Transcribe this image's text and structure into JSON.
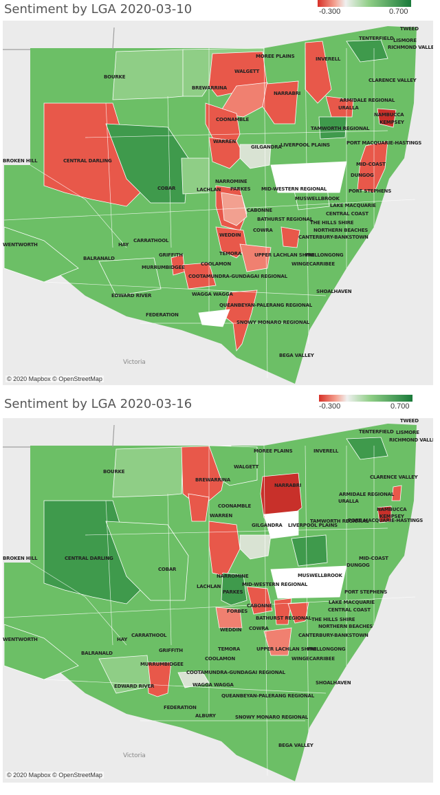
{
  "maps": [
    {
      "title": "Sentiment by LGA 2020-03-10",
      "legend": {
        "min": "-0.300",
        "max": "0.700"
      },
      "attribution": "© 2020 Mapbox © OpenStreetMap",
      "basemap_labels": [
        "Victoria"
      ],
      "lga_labels": [
        {
          "t": "TWEED"
        },
        {
          "t": "LISMORE"
        },
        {
          "t": "TENTERFIELD"
        },
        {
          "t": "RICHMOND VALLEY"
        },
        {
          "t": "MOREE PLAINS"
        },
        {
          "t": "INVERELL"
        },
        {
          "t": "BOURKE"
        },
        {
          "t": "WALGETT"
        },
        {
          "t": "BREWARRINA"
        },
        {
          "t": "CLARENCE VALLEY"
        },
        {
          "t": "NARRABRI"
        },
        {
          "t": "ARMIDALE REGIONAL"
        },
        {
          "t": "URALLA"
        },
        {
          "t": "NAMBUCCA"
        },
        {
          "t": "KEMPSEY"
        },
        {
          "t": "COONAMBLE"
        },
        {
          "t": "TAMWORTH REGIONAL"
        },
        {
          "t": "GILGANDRA"
        },
        {
          "t": "WARREN"
        },
        {
          "t": "LIVERPOOL PLAINS"
        },
        {
          "t": "PORT MACQUARIE-HASTINGS"
        },
        {
          "t": "BROKEN HILL"
        },
        {
          "t": "CENTRAL DARLING"
        },
        {
          "t": "MID-COAST"
        },
        {
          "t": "DUNGOG"
        },
        {
          "t": "NARROMINE"
        },
        {
          "t": "PARKES"
        },
        {
          "t": "MID-WESTERN REGIONAL"
        },
        {
          "t": "MUSWELLBROOK"
        },
        {
          "t": "COBAR"
        },
        {
          "t": "LACHLAN"
        },
        {
          "t": "PORT STEPHENS"
        },
        {
          "t": "LAKE MACQUARIE"
        },
        {
          "t": "CABONNE"
        },
        {
          "t": "CENTRAL COAST"
        },
        {
          "t": "BATHURST REGIONAL"
        },
        {
          "t": "THE HILLS SHIRE"
        },
        {
          "t": "NORTHERN BEACHES"
        },
        {
          "t": "COWRA"
        },
        {
          "t": "WENTWORTH"
        },
        {
          "t": "WEDDIN"
        },
        {
          "t": "CANTERBURY-BANKSTOWN"
        },
        {
          "t": "HAY"
        },
        {
          "t": "CARRATHOOL"
        },
        {
          "t": "GRIFFITH"
        },
        {
          "t": "TEMORA"
        },
        {
          "t": "UPPER LACHLAN SHIRE"
        },
        {
          "t": "WOLLONGONG"
        },
        {
          "t": "BALRANALD"
        },
        {
          "t": "COOLAMON"
        },
        {
          "t": "WINGECARRIBEE"
        },
        {
          "t": "MURRUMBIDGEE"
        },
        {
          "t": "COOTAMUNDRA-GUNDAGAI REGIONAL"
        },
        {
          "t": "SHOALHAVEN"
        },
        {
          "t": "EDWARD RIVER"
        },
        {
          "t": "WAGGA WAGGA"
        },
        {
          "t": "QUEANBEYAN-PALERANG REGIONAL"
        },
        {
          "t": "FEDERATION"
        },
        {
          "t": "SNOWY MONARO REGIONAL"
        },
        {
          "t": "BEGA VALLEY"
        }
      ]
    },
    {
      "title": "Sentiment by LGA 2020-03-16",
      "legend": {
        "min": "-0.300",
        "max": "0.700"
      },
      "attribution": "© 2020 Mapbox © OpenStreetMap",
      "basemap_labels": [
        "Victoria"
      ],
      "lga_labels": [
        {
          "t": "TWEED"
        },
        {
          "t": "TENTERFIELD"
        },
        {
          "t": "LISMORE"
        },
        {
          "t": "RICHMOND VALLEY"
        },
        {
          "t": "MOREE PLAINS"
        },
        {
          "t": "INVERELL"
        },
        {
          "t": "BOURKE"
        },
        {
          "t": "WALGETT"
        },
        {
          "t": "BREWARRINA"
        },
        {
          "t": "CLARENCE VALLEY"
        },
        {
          "t": "NARRABRI"
        },
        {
          "t": "ARMIDALE REGIONAL"
        },
        {
          "t": "URALLA"
        },
        {
          "t": "NAMBUCCA"
        },
        {
          "t": "KEMPSEY"
        },
        {
          "t": "COONAMBLE"
        },
        {
          "t": "TAMWORTH REGIONAL"
        },
        {
          "t": "WARREN"
        },
        {
          "t": "GILGANDRA"
        },
        {
          "t": "PORT MACQUARIE-HASTINGS"
        },
        {
          "t": "LIVERPOOL PLAINS"
        },
        {
          "t": "BROKEN HILL"
        },
        {
          "t": "CENTRAL DARLING"
        },
        {
          "t": "MID-COAST"
        },
        {
          "t": "COBAR"
        },
        {
          "t": "DUNGOG"
        },
        {
          "t": "NARROMINE"
        },
        {
          "t": "MUSWELLBROOK"
        },
        {
          "t": "LACHLAN"
        },
        {
          "t": "MID-WESTERN REGIONAL"
        },
        {
          "t": "PARKES"
        },
        {
          "t": "PORT STEPHENS"
        },
        {
          "t": "LAKE MACQUARIE"
        },
        {
          "t": "FORBES"
        },
        {
          "t": "CABONNE"
        },
        {
          "t": "CENTRAL COAST"
        },
        {
          "t": "BATHURST REGIONAL"
        },
        {
          "t": "THE HILLS SHIRE"
        },
        {
          "t": "NORTHERN BEACHES"
        },
        {
          "t": "WEDDIN"
        },
        {
          "t": "COWRA"
        },
        {
          "t": "CANTERBURY-BANKSTOWN"
        },
        {
          "t": "WENTWORTH"
        },
        {
          "t": "HAY"
        },
        {
          "t": "CARRATHOOL"
        },
        {
          "t": "TEMORA"
        },
        {
          "t": "UPPER LACHLAN SHIRE"
        },
        {
          "t": "WOLLONGONG"
        },
        {
          "t": "GRIFFITH"
        },
        {
          "t": "BALRANALD"
        },
        {
          "t": "COOLAMON"
        },
        {
          "t": "WINGECARRIBEE"
        },
        {
          "t": "MURRUMBIDGEE"
        },
        {
          "t": "COOTAMUNDRA-GUNDAGAI REGIONAL"
        },
        {
          "t": "SHOALHAVEN"
        },
        {
          "t": "EDWARD RIVER"
        },
        {
          "t": "WAGGA WAGGA"
        },
        {
          "t": "QUEANBEYAN-PALERANG REGIONAL"
        },
        {
          "t": "FEDERATION"
        },
        {
          "t": "ALBURY"
        },
        {
          "t": "SNOWY MONARO REGIONAL"
        },
        {
          "t": "BEGA VALLEY"
        }
      ]
    }
  ],
  "colors": {
    "negative": "#d73027",
    "neutral": "#f0f0f0",
    "positive": "#1a7a3a",
    "mid_green": "#6cbf66",
    "basemap": "#ebebeb"
  }
}
